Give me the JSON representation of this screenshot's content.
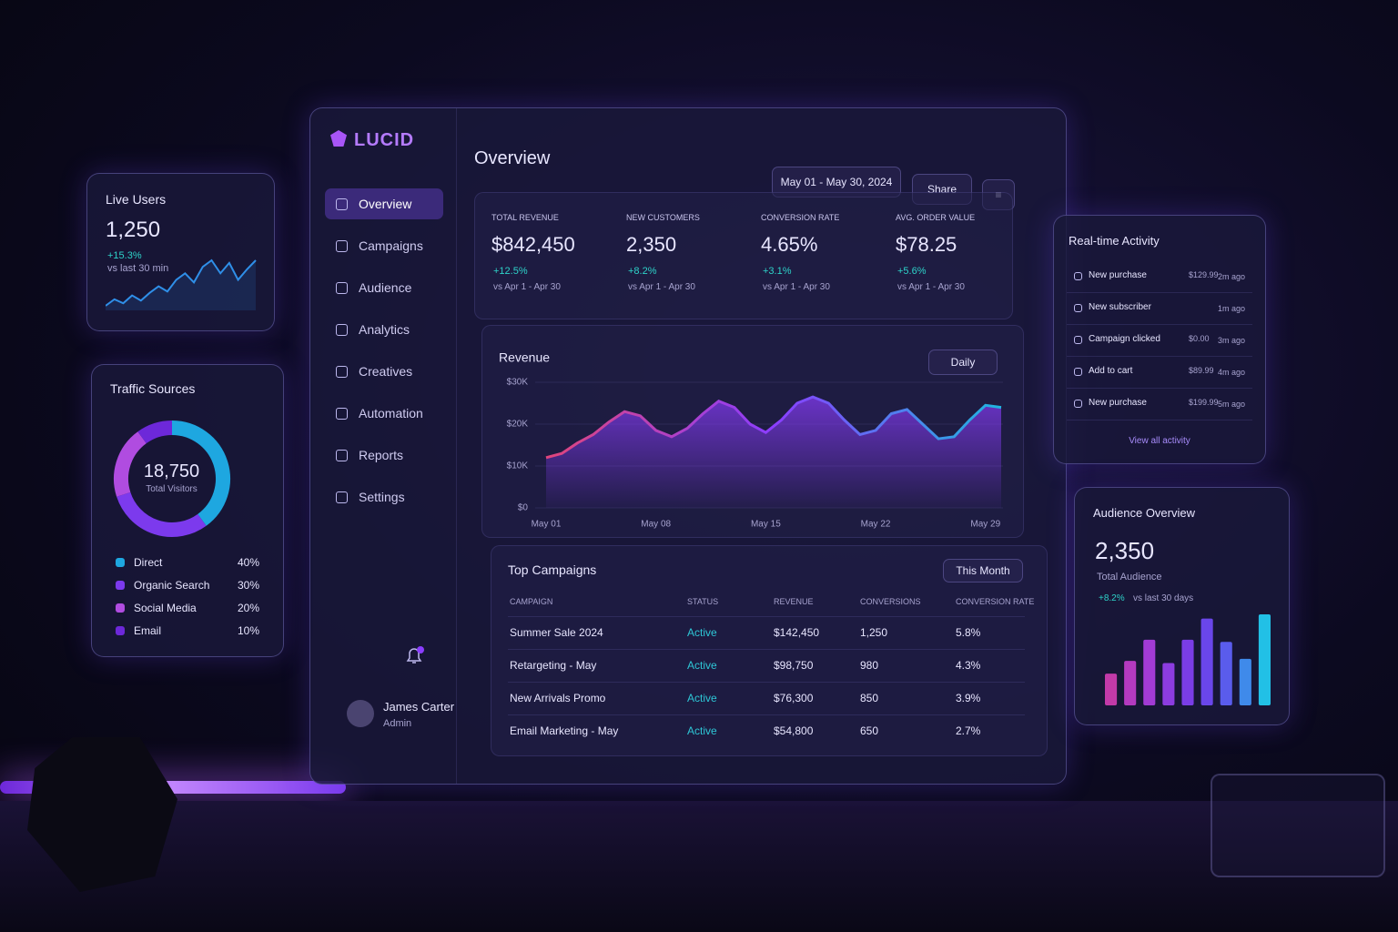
{
  "brand": "LUCID",
  "nav": [
    "Overview",
    "Campaigns",
    "Audience",
    "Analytics",
    "Creatives",
    "Automation",
    "Reports",
    "Settings"
  ],
  "user": {
    "name": "James Carter",
    "role": "Admin"
  },
  "header": {
    "title": "Overview",
    "date_range": "May 01 - May 30, 2024",
    "share": "Share"
  },
  "kpis": [
    {
      "label": "TOTAL REVENUE",
      "value": "$842,450",
      "change": "+12.5%",
      "period": "vs Apr 1 - Apr 30"
    },
    {
      "label": "NEW CUSTOMERS",
      "value": "2,350",
      "change": "+8.2%",
      "period": "vs Apr 1 - Apr 30"
    },
    {
      "label": "CONVERSION RATE",
      "value": "4.65%",
      "change": "+3.1%",
      "period": "vs Apr 1 - Apr 30"
    },
    {
      "label": "AVG. ORDER VALUE",
      "value": "$78.25",
      "change": "+5.6%",
      "period": "vs Apr 1 - Apr 30"
    }
  ],
  "revenue_card": {
    "filter": "Daily"
  },
  "campaigns": {
    "title": "Top Campaigns",
    "filter": "This Month",
    "columns": [
      "CAMPAIGN",
      "STATUS",
      "REVENUE",
      "CONVERSIONS",
      "CONVERSION RATE"
    ],
    "rows": [
      [
        "Summer Sale 2024",
        "Active",
        "$142,450",
        "1,250",
        "5.8%"
      ],
      [
        "Retargeting - May",
        "Active",
        "$98,750",
        "980",
        "4.3%"
      ],
      [
        "New Arrivals Promo",
        "Active",
        "$76,300",
        "850",
        "3.9%"
      ],
      [
        "Email Marketing - May",
        "Active",
        "$54,800",
        "650",
        "2.7%"
      ]
    ]
  },
  "live_users": {
    "title": "Live Users",
    "value": "1,250",
    "change": "+15.3%",
    "period": "vs last 30 min"
  },
  "traffic": {
    "title": "Traffic Sources",
    "total": "18,750",
    "total_label": "Total Visitors"
  },
  "activity": {
    "title": "Real-time Activity",
    "items": [
      {
        "label": "New purchase",
        "amount": "$129.99",
        "time": "2m ago"
      },
      {
        "label": "New subscriber",
        "time": "1m ago"
      },
      {
        "label": "Campaign clicked",
        "amount": "$0.00",
        "time": "3m ago"
      },
      {
        "label": "Add to cart",
        "amount": "$89.99",
        "time": "4m ago"
      },
      {
        "label": "New purchase",
        "amount": "$199.99",
        "time": "5m ago"
      }
    ],
    "link": "View all activity"
  },
  "audience": {
    "title": "Audience Overview",
    "value": "2,350",
    "label": "Total Audience",
    "change": "+8.2%",
    "period": "vs last 30 days"
  },
  "chart_data": [
    {
      "type": "area",
      "title": "Revenue",
      "categories": [
        "May 01",
        null,
        null,
        null,
        null,
        null,
        null,
        "May 08",
        null,
        null,
        null,
        null,
        null,
        null,
        "May 15",
        null,
        null,
        null,
        null,
        null,
        null,
        "May 22",
        null,
        null,
        null,
        null,
        null,
        null,
        "May 29",
        null
      ],
      "values": [
        12000,
        13000,
        15500,
        17500,
        20500,
        23000,
        22000,
        18500,
        17000,
        19000,
        22500,
        25500,
        24000,
        20000,
        18000,
        21000,
        25000,
        26500,
        25000,
        21000,
        17500,
        18500,
        22500,
        23500,
        20000,
        16500,
        17000,
        21000,
        24500,
        24000
      ],
      "colors": [
        "#e0457b",
        "#8b3dff",
        "#1fb6e0"
      ],
      "ylim": [
        0,
        30000
      ],
      "yticks": [
        {
          "value": 0,
          "label": "$0"
        },
        {
          "value": 10000,
          "label": "$10K"
        },
        {
          "value": 20000,
          "label": "$20K"
        },
        {
          "value": 30000,
          "label": "$30K"
        }
      ],
      "grid": true
    },
    {
      "type": "line",
      "values": [
        900,
        950,
        920,
        980,
        940,
        1000,
        1050,
        1010,
        1100,
        1150,
        1080,
        1200,
        1250,
        1150,
        1230,
        1100,
        1180,
        1250
      ],
      "color": "#2f8fe8"
    },
    {
      "type": "donut",
      "categories": [
        "Direct",
        "Organic Search",
        "Social Media",
        "Email"
      ],
      "values": [
        40,
        30,
        20,
        10
      ],
      "value_labels": [
        "40%",
        "30%",
        "20%",
        "10%"
      ],
      "colors": [
        "#1ea7e0",
        "#7c3aed",
        "#b04ce0",
        "#6d28d9"
      ]
    },
    {
      "type": "bar",
      "values": [
        30,
        42,
        62,
        40,
        62,
        82,
        60,
        44,
        86
      ],
      "colors": [
        "#c23aa8",
        "#b43ac0",
        "#a23bd4",
        "#8c3ce0",
        "#7a3de6",
        "#6a46ea",
        "#5a5cec",
        "#3f8aea",
        "#22c0e6"
      ]
    }
  ]
}
